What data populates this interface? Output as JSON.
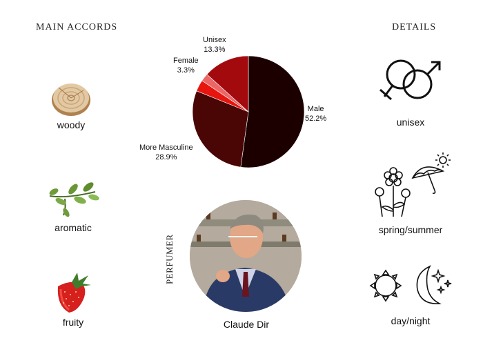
{
  "headings": {
    "main_accords": "MAIN ACCORDS",
    "details": "DETAILS"
  },
  "accords": [
    {
      "icon": "wood-slice-icon",
      "label": "woody"
    },
    {
      "icon": "herb-sprig-icon",
      "label": "aromatic"
    },
    {
      "icon": "strawberry-icon",
      "label": "fruity"
    }
  ],
  "details": [
    {
      "icon": "male-female-symbol-icon",
      "label": "unisex"
    },
    {
      "icon": "flowers-umbrella-sun-icon",
      "label": "spring/summer"
    },
    {
      "icon": "sun-moon-icon",
      "label": "day/night"
    }
  ],
  "perfumer": {
    "label": "PERFUMER",
    "name": "Claude Dir"
  },
  "chart_data": {
    "type": "pie",
    "title": "",
    "slices": [
      {
        "label": "Male",
        "value": 52.2,
        "display": "52.2%",
        "color": "#1c0000"
      },
      {
        "label": "More Masculine",
        "value": 28.9,
        "display": "28.9%",
        "color": "#4a0505"
      },
      {
        "label": "Female",
        "value": 3.3,
        "display": "3.3%",
        "color": "#e8140e"
      },
      {
        "label": "Female (light)",
        "value": 2.3,
        "display": "",
        "color": "#ec6666"
      },
      {
        "label": "Unisex",
        "value": 13.3,
        "display": "13.3%",
        "color": "#a30a0e"
      }
    ],
    "legend": "none"
  }
}
